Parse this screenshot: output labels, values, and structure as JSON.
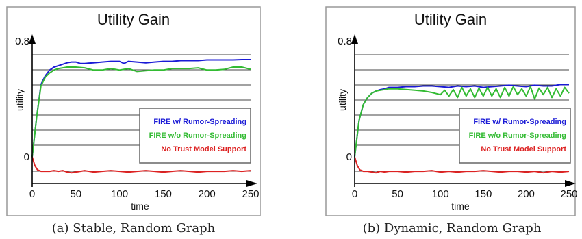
{
  "chart_data": [
    {
      "type": "line",
      "title": "Utility Gain",
      "caption": "(a) Stable, Random Graph",
      "xlabel": "time",
      "ylabel": "utility",
      "xlim": [
        0,
        250
      ],
      "ylim": [
        -0.15,
        0.8
      ],
      "x_ticks": [
        "0",
        "50",
        "100",
        "150",
        "200",
        "250"
      ],
      "y_ticks": [
        "0",
        "0.8"
      ],
      "grid": "horizontal lines",
      "legend_position": "center-right",
      "series": [
        {
          "name": "FIRE w/ Rumor-Spreading",
          "color": "#1a1ad6",
          "x": [
            0,
            5,
            10,
            15,
            20,
            25,
            30,
            35,
            40,
            45,
            50,
            55,
            60,
            70,
            80,
            90,
            100,
            105,
            110,
            120,
            130,
            140,
            150,
            160,
            170,
            180,
            190,
            200,
            210,
            220,
            230,
            240,
            250
          ],
          "y": [
            0,
            0.27,
            0.5,
            0.56,
            0.6,
            0.62,
            0.63,
            0.64,
            0.65,
            0.655,
            0.655,
            0.645,
            0.645,
            0.65,
            0.655,
            0.66,
            0.66,
            0.645,
            0.66,
            0.655,
            0.65,
            0.655,
            0.66,
            0.66,
            0.665,
            0.665,
            0.665,
            0.67,
            0.67,
            0.67,
            0.67,
            0.672,
            0.672
          ]
        },
        {
          "name": "FIRE w/o Rumor-Spreading",
          "color": "#33bb33",
          "x": [
            0,
            5,
            10,
            15,
            20,
            25,
            30,
            35,
            40,
            50,
            60,
            70,
            80,
            90,
            100,
            110,
            120,
            130,
            140,
            150,
            160,
            170,
            180,
            190,
            200,
            210,
            220,
            230,
            240,
            250
          ],
          "y": [
            0,
            0.27,
            0.49,
            0.55,
            0.58,
            0.6,
            0.61,
            0.615,
            0.62,
            0.62,
            0.615,
            0.6,
            0.6,
            0.61,
            0.6,
            0.61,
            0.59,
            0.595,
            0.6,
            0.6,
            0.61,
            0.61,
            0.61,
            0.615,
            0.6,
            0.6,
            0.605,
            0.62,
            0.62,
            0.605
          ]
        },
        {
          "name": "No Trust Model Support",
          "color": "#dd2222",
          "x": [
            0,
            3,
            6,
            10,
            15,
            20,
            25,
            30,
            35,
            40,
            45,
            50,
            60,
            70,
            80,
            90,
            100,
            110,
            120,
            130,
            140,
            150,
            160,
            170,
            180,
            190,
            200,
            210,
            220,
            230,
            240,
            250
          ],
          "y": [
            0,
            -0.06,
            -0.09,
            -0.1,
            -0.1,
            -0.1,
            -0.095,
            -0.1,
            -0.095,
            -0.105,
            -0.11,
            -0.105,
            -0.095,
            -0.105,
            -0.1,
            -0.095,
            -0.1,
            -0.105,
            -0.1,
            -0.095,
            -0.1,
            -0.105,
            -0.1,
            -0.095,
            -0.1,
            -0.105,
            -0.1,
            -0.1,
            -0.1,
            -0.095,
            -0.1,
            -0.095
          ]
        }
      ]
    },
    {
      "type": "line",
      "title": "Utility Gain",
      "caption": "(b) Dynamic, Random Graph",
      "xlabel": "time",
      "ylabel": "utility",
      "xlim": [
        0,
        250
      ],
      "ylim": [
        -0.15,
        0.8
      ],
      "x_ticks": [
        "0",
        "50",
        "100",
        "150",
        "200",
        "250"
      ],
      "y_ticks": [
        "0",
        "0.8"
      ],
      "grid": "horizontal lines",
      "legend_position": "center-right",
      "series": [
        {
          "name": "FIRE w/ Rumor-Spreading",
          "color": "#1a1ad6",
          "x": [
            0,
            5,
            10,
            15,
            20,
            25,
            30,
            35,
            40,
            50,
            60,
            70,
            80,
            90,
            100,
            110,
            120,
            130,
            140,
            150,
            160,
            170,
            180,
            190,
            200,
            210,
            220,
            230,
            240,
            250
          ],
          "y": [
            0,
            0.25,
            0.36,
            0.41,
            0.44,
            0.455,
            0.465,
            0.47,
            0.48,
            0.48,
            0.485,
            0.485,
            0.49,
            0.49,
            0.485,
            0.48,
            0.49,
            0.485,
            0.49,
            0.48,
            0.485,
            0.49,
            0.495,
            0.49,
            0.485,
            0.495,
            0.49,
            0.49,
            0.5,
            0.5
          ]
        },
        {
          "name": "FIRE w/o Rumor-Spreading",
          "color": "#33bb33",
          "x": [
            0,
            5,
            10,
            15,
            20,
            25,
            30,
            35,
            40,
            50,
            60,
            70,
            80,
            90,
            100,
            105,
            110,
            115,
            120,
            125,
            130,
            135,
            140,
            145,
            150,
            155,
            160,
            165,
            170,
            175,
            180,
            185,
            190,
            195,
            200,
            205,
            210,
            215,
            220,
            225,
            230,
            235,
            240,
            245,
            250
          ],
          "y": [
            0,
            0.25,
            0.36,
            0.41,
            0.44,
            0.455,
            0.46,
            0.465,
            0.47,
            0.47,
            0.465,
            0.46,
            0.455,
            0.445,
            0.43,
            0.46,
            0.42,
            0.465,
            0.41,
            0.48,
            0.42,
            0.47,
            0.41,
            0.475,
            0.42,
            0.48,
            0.42,
            0.47,
            0.41,
            0.48,
            0.42,
            0.485,
            0.43,
            0.47,
            0.42,
            0.485,
            0.4,
            0.475,
            0.43,
            0.48,
            0.41,
            0.47,
            0.42,
            0.48,
            0.44
          ]
        },
        {
          "name": "No Trust Model Support",
          "color": "#dd2222",
          "x": [
            0,
            3,
            6,
            10,
            15,
            20,
            25,
            30,
            35,
            40,
            50,
            60,
            70,
            80,
            90,
            100,
            110,
            120,
            130,
            140,
            150,
            160,
            170,
            180,
            190,
            200,
            210,
            220,
            230,
            240,
            250
          ],
          "y": [
            0,
            -0.06,
            -0.09,
            -0.1,
            -0.1,
            -0.105,
            -0.11,
            -0.1,
            -0.105,
            -0.1,
            -0.1,
            -0.105,
            -0.1,
            -0.1,
            -0.095,
            -0.105,
            -0.1,
            -0.105,
            -0.1,
            -0.1,
            -0.095,
            -0.1,
            -0.105,
            -0.1,
            -0.1,
            -0.105,
            -0.1,
            -0.11,
            -0.1,
            -0.105,
            -0.1
          ]
        }
      ]
    }
  ]
}
